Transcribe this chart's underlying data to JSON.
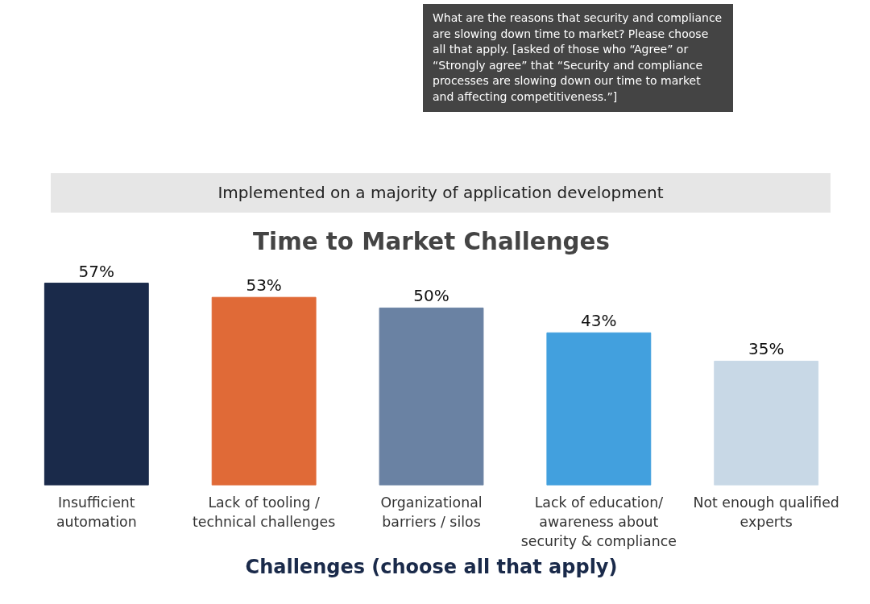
{
  "chart_data": {
    "type": "bar",
    "title": "Time to Market Challenges",
    "xlabel": "Challenges (choose all that apply)",
    "annotations": [
      "What are the reasons that security and compliance are slowing down time to market? Please choose all that apply. [asked of those who “Agree” or “Strongly agree” that “Security and compliance processes are slowing down our time to market and affecting competitiveness.”]",
      "Implemented on a majority of application development"
    ],
    "categories": [
      "Insufficient automation",
      "Lack of tooling / technical challenges",
      "Organizational barriers / silos",
      "Lack of education/ awareness about security & compliance",
      "Not enough qualified experts"
    ],
    "values": [
      57,
      53,
      50,
      43,
      35
    ],
    "colors": [
      "#1a2a4a",
      "#e06a37",
      "#6a82a3",
      "#42a0de",
      "#c8d8e6"
    ],
    "value_labels": [
      "57%",
      "53%",
      "50%",
      "43%",
      "35%"
    ],
    "grid": false
  }
}
